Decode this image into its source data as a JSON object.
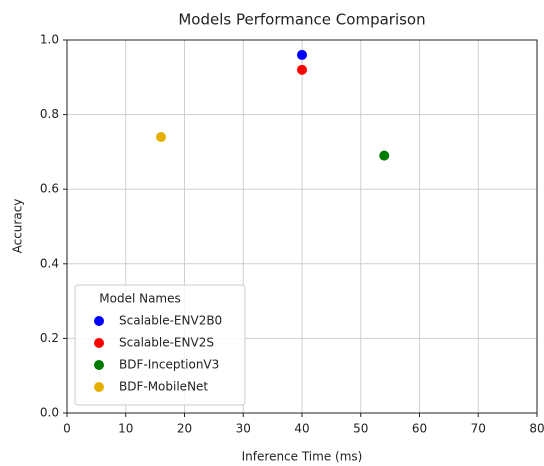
{
  "chart_data": {
    "type": "scatter",
    "title": "Models Performance Comparison",
    "x_label": "Inference Time (ms)",
    "y_label": "Accuracy",
    "xlim": [
      0,
      80
    ],
    "xticks": [
      0,
      10,
      20,
      30,
      40,
      50,
      60,
      70,
      80
    ],
    "ylim": [
      0,
      1
    ],
    "yticks": [
      {
        "value": 0,
        "label": "0.0"
      },
      0.2,
      0.4,
      0.6,
      0.8,
      {
        "value": 1,
        "label": "1.0"
      }
    ],
    "grid": true,
    "legend_title": "Model Names",
    "legend_position": "lower left",
    "series": [
      {
        "name": "Scalable-ENV2B0",
        "color": "#0000ff",
        "x": [
          40
        ],
        "values": [
          0.96
        ]
      },
      {
        "name": "Scalable-ENV2S",
        "color": "#ff0000",
        "x": [
          40
        ],
        "values": [
          0.92
        ]
      },
      {
        "name": "BDF-InceptionV3",
        "color": "#007a00",
        "x": [
          54
        ],
        "values": [
          0.69
        ]
      },
      {
        "name": "BDF-MobileNet",
        "color": "#e6b000",
        "x": [
          16
        ],
        "values": [
          0.74
        ]
      }
    ]
  }
}
